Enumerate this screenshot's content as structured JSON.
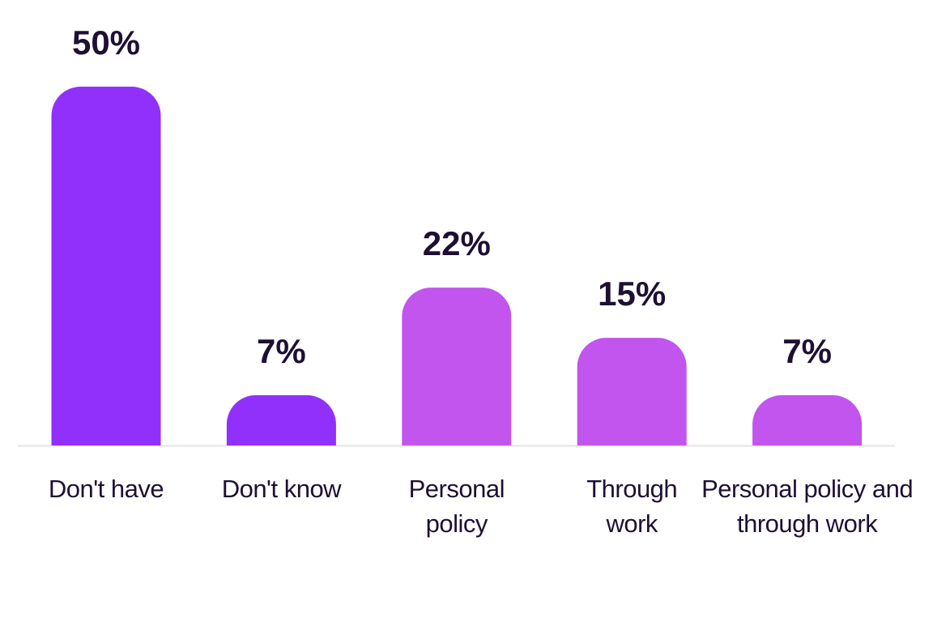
{
  "chart_data": {
    "type": "bar",
    "categories": [
      "Don't have",
      "Don't know",
      "Personal policy",
      "Through work",
      "Personal policy and through work"
    ],
    "values": [
      50,
      7,
      22,
      15,
      7
    ],
    "value_labels": [
      "50%",
      "7%",
      "22%",
      "15%",
      "7%"
    ],
    "colors": [
      "#9130fa",
      "#9130fa",
      "#c155ee",
      "#c155ee",
      "#c155ee"
    ]
  }
}
